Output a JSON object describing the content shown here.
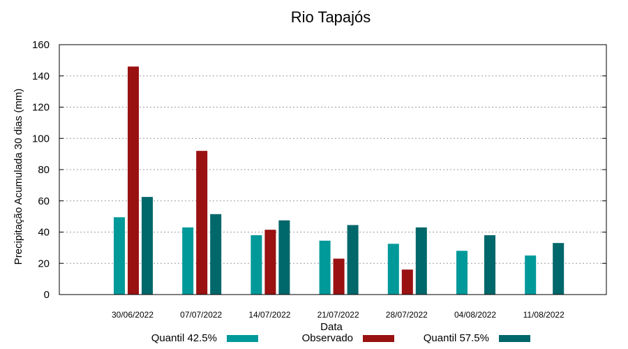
{
  "chart_data": {
    "type": "bar",
    "title": "Rio Tapajós",
    "xlabel": "Data",
    "ylabel": "Precipitação Acumulada 30 dias (mm)",
    "ylim": [
      0,
      160
    ],
    "yticks": [
      0,
      20,
      40,
      60,
      80,
      100,
      120,
      140,
      160
    ],
    "grid": true,
    "legend_position": "bottom",
    "categories": [
      "30/06/2022",
      "07/07/2022",
      "14/07/2022",
      "21/07/2022",
      "28/07/2022",
      "04/08/2022",
      "11/08/2022"
    ],
    "series": [
      {
        "name": "Quantil 42.5%",
        "color": "#00999a",
        "values": [
          49.5,
          43,
          38,
          34.5,
          32.5,
          28,
          25
        ]
      },
      {
        "name": "Observado",
        "color": "#991111",
        "values": [
          146,
          92,
          41.5,
          23,
          16,
          null,
          null
        ]
      },
      {
        "name": "Quantil 57.5%",
        "color": "#00676a",
        "values": [
          62.5,
          51.5,
          47.5,
          44.5,
          43,
          38,
          33
        ]
      }
    ]
  }
}
